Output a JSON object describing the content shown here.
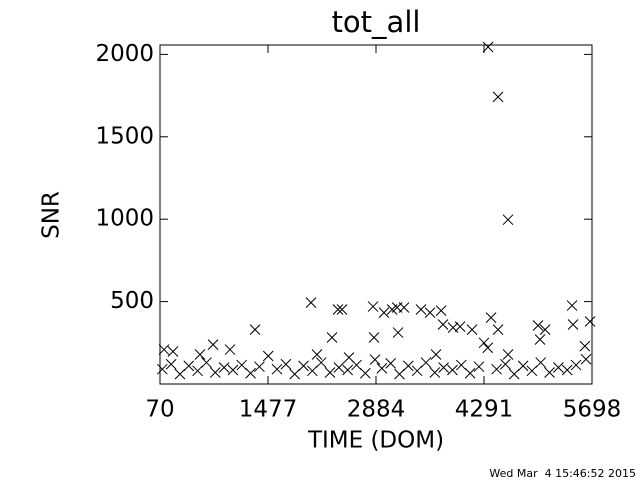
{
  "chart_data": {
    "type": "scatter",
    "title": "tot_all",
    "xlabel": "TIME (DOM)",
    "ylabel": "SNR",
    "footer": "Wed Mar  4 15:46:52 2015",
    "color": "#000000",
    "xlim": [
      70,
      5698
    ],
    "ylim": [
      0,
      2057
    ],
    "xticks": [
      70,
      1477,
      2884,
      4291,
      5698
    ],
    "yticks": [
      500,
      1000,
      1500,
      2000
    ],
    "x": [
      4344,
      4474,
      4604,
      2037,
      2389,
      2441,
      2845,
      2988,
      3094,
      3159,
      3249,
      3470,
      3588,
      3732,
      122,
      239,
      1308,
      2311,
      2858,
      3171,
      3757,
      3888,
      3979,
      4135,
      4383,
      4474,
      4995,
      5087,
      5438,
      5451,
      5672,
      761,
      2115,
      2532,
      2871,
      3666,
      4604,
      5021,
      591,
      982,
      100,
      215,
      330,
      445,
      560,
      675,
      790,
      905,
      1020,
      1135,
      1250,
      1365,
      1480,
      1595,
      1710,
      1825,
      1940,
      2055,
      2170,
      2285,
      2400,
      2515,
      2630,
      2745,
      2960,
      3075,
      3190,
      3305,
      3420,
      3535,
      3650,
      3765,
      3880,
      3995,
      4110,
      4225,
      4291,
      4340,
      4455,
      4570,
      4685,
      4800,
      4915,
      5030,
      5145,
      5260,
      5375,
      5490,
      5605,
      5620
    ],
    "values": [
      2045,
      1742,
      997,
      494,
      452,
      452,
      470,
      433,
      452,
      464,
      464,
      452,
      433,
      445,
      209,
      197,
      330,
      282,
      282,
      312,
      361,
      342,
      348,
      330,
      403,
      330,
      355,
      330,
      476,
      361,
      379,
      239,
      179,
      161,
      148,
      179,
      179,
      270,
      179,
      209,
      90,
      120,
      60,
      110,
      80,
      130,
      70,
      100,
      85,
      115,
      65,
      105,
      170,
      90,
      120,
      60,
      110,
      80,
      130,
      70,
      100,
      85,
      115,
      65,
      95,
      125,
      60,
      110,
      80,
      130,
      70,
      100,
      85,
      115,
      65,
      105,
      250,
      220,
      90,
      120,
      60,
      110,
      80,
      130,
      70,
      100,
      85,
      115,
      230,
      150
    ]
  }
}
